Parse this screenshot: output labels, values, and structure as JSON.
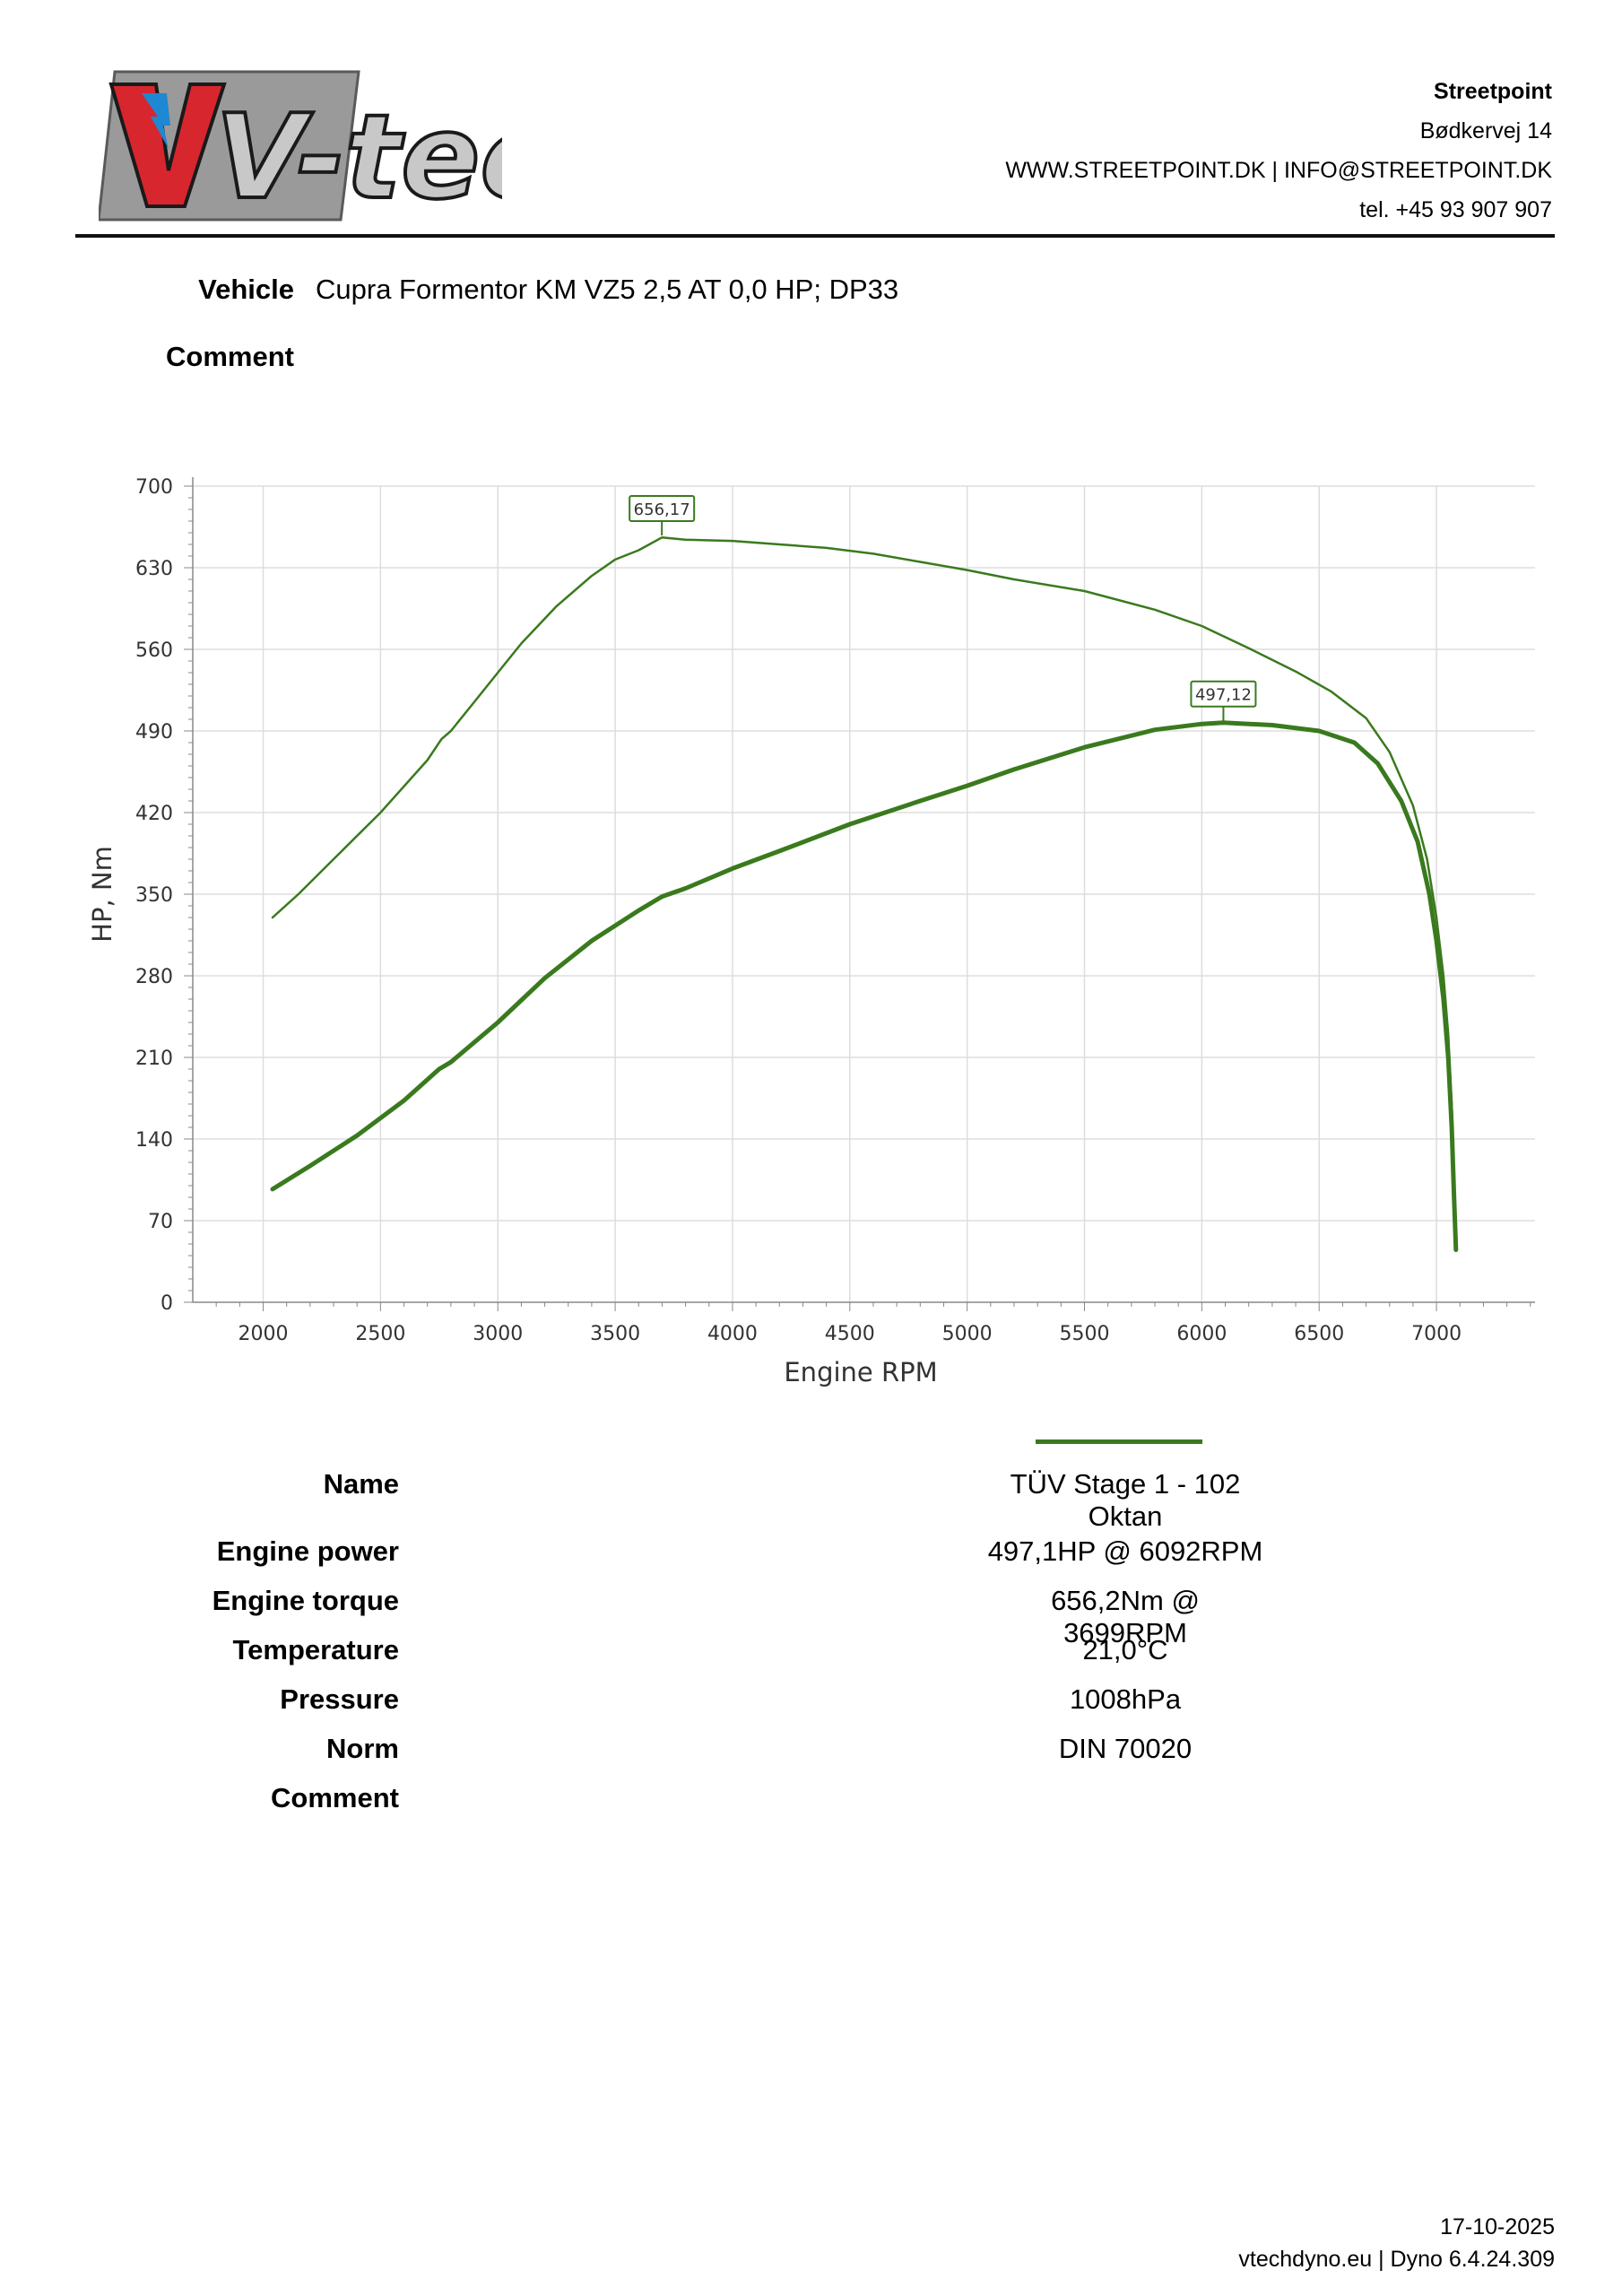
{
  "brand": {
    "logo_text": "V-tech"
  },
  "company": {
    "name": "Streetpoint",
    "address": "Bødkervej 14",
    "web_email": "WWW.STREETPOINT.DK | INFO@STREETPOINT.DK",
    "phone": "tel. +45 93 907 907"
  },
  "header": {
    "vehicle_label": "Vehicle",
    "vehicle_value": "Cupra Formentor KM VZ5 2,5 AT 0,0 HP; DP33",
    "comment_label": "Comment"
  },
  "chart_data": {
    "type": "line",
    "xlabel": "Engine RPM",
    "ylabel": "HP, Nm",
    "xlim": [
      1700,
      7420
    ],
    "ylim": [
      0,
      700
    ],
    "x_ticks": [
      2000,
      2500,
      3000,
      3500,
      4000,
      4500,
      5000,
      5500,
      6000,
      6500,
      7000
    ],
    "y_ticks": [
      0,
      70,
      140,
      210,
      280,
      350,
      420,
      490,
      560,
      630,
      700
    ],
    "grid": true,
    "series": [
      {
        "role": "torque",
        "color": "#3a7a1e",
        "stroke": "thin",
        "points": [
          [
            2040,
            330
          ],
          [
            2150,
            350
          ],
          [
            2300,
            380
          ],
          [
            2500,
            420
          ],
          [
            2700,
            465
          ],
          [
            2760,
            483
          ],
          [
            2800,
            490
          ],
          [
            2900,
            515
          ],
          [
            3000,
            540
          ],
          [
            3100,
            565
          ],
          [
            3250,
            597
          ],
          [
            3400,
            623
          ],
          [
            3500,
            637
          ],
          [
            3600,
            645
          ],
          [
            3700,
            656
          ],
          [
            3800,
            654
          ],
          [
            4000,
            653
          ],
          [
            4200,
            650
          ],
          [
            4400,
            647
          ],
          [
            4600,
            642
          ],
          [
            4800,
            635
          ],
          [
            5000,
            628
          ],
          [
            5200,
            620
          ],
          [
            5500,
            610
          ],
          [
            5800,
            594
          ],
          [
            6000,
            580
          ],
          [
            6200,
            561
          ],
          [
            6400,
            541
          ],
          [
            6550,
            524
          ],
          [
            6700,
            501
          ],
          [
            6800,
            472
          ],
          [
            6900,
            426
          ],
          [
            6960,
            380
          ],
          [
            7000,
            330
          ],
          [
            7030,
            280
          ],
          [
            7050,
            230
          ],
          [
            7065,
            170
          ],
          [
            7075,
            110
          ],
          [
            7083,
            50
          ]
        ]
      },
      {
        "role": "power",
        "color": "#3a7a1e",
        "stroke": "thick",
        "points": [
          [
            2040,
            97
          ],
          [
            2200,
            117
          ],
          [
            2400,
            143
          ],
          [
            2600,
            173
          ],
          [
            2750,
            200
          ],
          [
            2800,
            206
          ],
          [
            3000,
            240
          ],
          [
            3200,
            278
          ],
          [
            3400,
            310
          ],
          [
            3600,
            336
          ],
          [
            3700,
            348
          ],
          [
            3800,
            355
          ],
          [
            4000,
            372
          ],
          [
            4200,
            387
          ],
          [
            4500,
            410
          ],
          [
            4800,
            430
          ],
          [
            5000,
            443
          ],
          [
            5200,
            457
          ],
          [
            5500,
            476
          ],
          [
            5800,
            491
          ],
          [
            6000,
            496
          ],
          [
            6092,
            497.1
          ],
          [
            6300,
            495
          ],
          [
            6500,
            490
          ],
          [
            6650,
            480
          ],
          [
            6750,
            462
          ],
          [
            6850,
            430
          ],
          [
            6920,
            395
          ],
          [
            6970,
            350
          ],
          [
            7000,
            310
          ],
          [
            7030,
            260
          ],
          [
            7050,
            210
          ],
          [
            7065,
            150
          ],
          [
            7075,
            90
          ],
          [
            7083,
            45
          ]
        ]
      }
    ],
    "annotations": [
      {
        "text": "656,17",
        "x": 3699,
        "y": 656.17
      },
      {
        "text": "497,12",
        "x": 6092,
        "y": 497.12
      }
    ]
  },
  "legend": {
    "color": "#3a7a1e"
  },
  "specs": {
    "name_label": "Name",
    "name_value": "TÜV Stage 1 - 102 Oktan",
    "power_label": "Engine power",
    "power_value": "497,1HP @ 6092RPM",
    "torque_label": "Engine torque",
    "torque_value": "656,2Nm @ 3699RPM",
    "temperature_label": "Temperature",
    "temperature_value": "21,0°C",
    "pressure_label": "Pressure",
    "pressure_value": "1008hPa",
    "norm_label": "Norm",
    "norm_value": "DIN 70020",
    "comment_label": "Comment"
  },
  "footer": {
    "date": "17-10-2025",
    "software": "vtechdyno.eu | Dyno 6.4.24.309"
  }
}
